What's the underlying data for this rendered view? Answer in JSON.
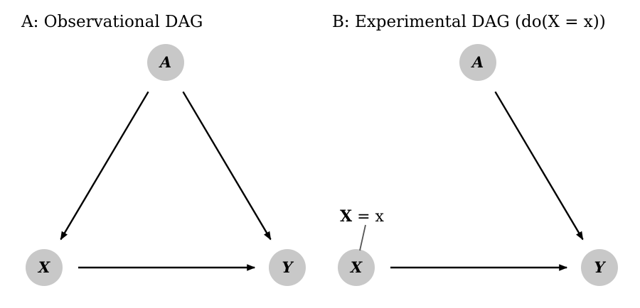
{
  "panels": [
    {
      "title": "A: Observational DAG",
      "nodes": [
        {
          "id": "A",
          "label": "A"
        },
        {
          "id": "X",
          "label": "X"
        },
        {
          "id": "Y",
          "label": "Y"
        }
      ],
      "edges": [
        {
          "from": "A",
          "to": "X"
        },
        {
          "from": "A",
          "to": "Y"
        },
        {
          "from": "X",
          "to": "Y"
        }
      ]
    },
    {
      "title": "B: Experimental DAG (do(X = x))",
      "nodes": [
        {
          "id": "A",
          "label": "A"
        },
        {
          "id": "X",
          "label": "X"
        },
        {
          "id": "Y",
          "label": "Y"
        }
      ],
      "edges": [
        {
          "from": "A",
          "to": "Y"
        },
        {
          "from": "X",
          "to": "Y"
        }
      ],
      "annotation": {
        "bold": "X",
        "rest": " = x",
        "node": "X"
      }
    }
  ],
  "colors": {
    "node_fill": "#c8c8c8",
    "edge": "#000000",
    "annotation_line": "#555555"
  }
}
